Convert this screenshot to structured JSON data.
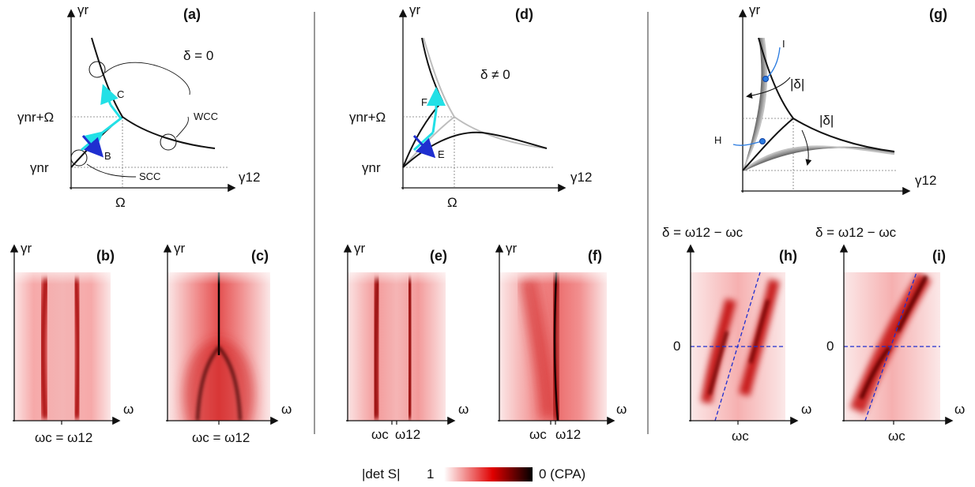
{
  "panels": {
    "a": {
      "tag": "(a)",
      "yaxis": "γr",
      "xaxis": "γ12",
      "delta": "δ = 0",
      "y_tick_upper": "γnr+Ω",
      "y_tick_lower": "γnr",
      "x_tick": "Ω",
      "pt_B": "B",
      "pt_C": "C",
      "wcc": "WCC",
      "scc": "SCC"
    },
    "b": {
      "tag": "(b)",
      "yaxis": "γr",
      "xaxis": "ω",
      "x_tick": "ωc = ω12"
    },
    "c": {
      "tag": "(c)",
      "yaxis": "γr",
      "xaxis": "ω",
      "x_tick": "ωc = ω12"
    },
    "d": {
      "tag": "(d)",
      "yaxis": "γr",
      "xaxis": "γ12",
      "delta": "δ ≠ 0",
      "y_tick_upper": "γnr+Ω",
      "y_tick_lower": "γnr",
      "x_tick": "Ω",
      "pt_E": "E",
      "pt_F": "F"
    },
    "e": {
      "tag": "(e)",
      "yaxis": "γr",
      "xaxis": "ω",
      "x_tick_1": "ωc",
      "x_tick_2": "ω12"
    },
    "f": {
      "tag": "(f)",
      "yaxis": "γr",
      "xaxis": "ω",
      "x_tick_1": "ωc",
      "x_tick_2": "ω12"
    },
    "g": {
      "tag": "(g)",
      "yaxis": "γr",
      "xaxis": "γ12",
      "pt_I": "I",
      "pt_H": "H",
      "delta_upper": "|δ|",
      "delta_lower": "|δ|"
    },
    "h": {
      "tag": "(h)",
      "yaxis": "δ = ω12 − ωc",
      "xaxis": "ω",
      "y_tick": "0",
      "x_tick": "ωc"
    },
    "i": {
      "tag": "(i)",
      "yaxis": "δ = ω12 − ωc",
      "xaxis": "ω",
      "y_tick": "0",
      "x_tick": "ωc"
    }
  },
  "colorbar": {
    "label": "|det S|",
    "min_label": "1",
    "max_label": "0 (CPA)",
    "color_low": "#ffffff",
    "color_mid": "#e00000",
    "color_high": "#000000"
  },
  "colors": {
    "cyan": "#22e0e6",
    "blue": "#1f2fd0",
    "marker": "#2a7be0"
  }
}
